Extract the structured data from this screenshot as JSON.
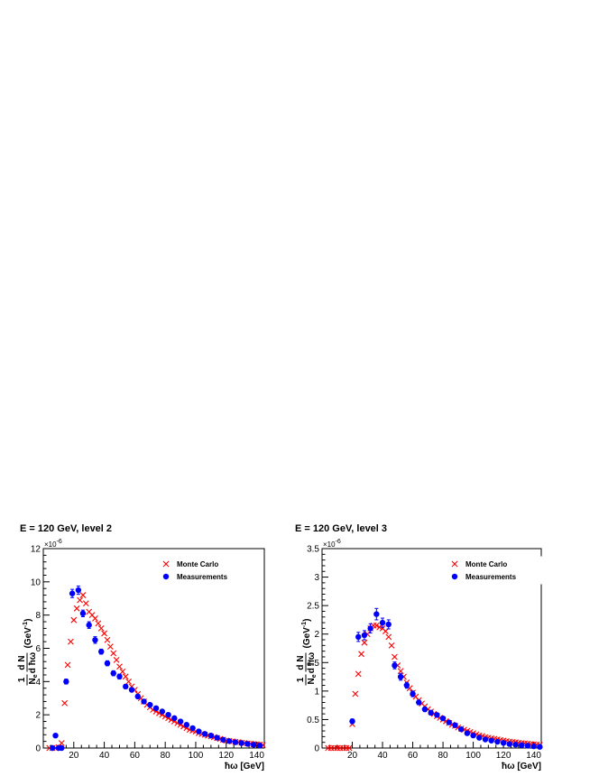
{
  "chart_data": [
    {
      "type": "scatter",
      "title": "E = 120 GeV, level 2",
      "xlabel": "ħω [GeV]",
      "ylabel": "1/N_e dN/dħω (GeV⁻¹)",
      "ylabel_parts": {
        "frac1_num": "1",
        "frac1_den": "N",
        "frac1_den_sub": "e",
        "frac2_num": "d N",
        "frac2_den": "d ħω",
        "unit": "(GeV",
        "unit_sup": "-1",
        "unit_close": ")"
      },
      "y_multiplier": "×10",
      "y_multiplier_exp": "-6",
      "xlim": [
        0,
        145
      ],
      "ylim": [
        0,
        12
      ],
      "xticks": [
        20,
        40,
        60,
        80,
        100,
        120,
        140
      ],
      "yticks": [
        0,
        2,
        4,
        6,
        8,
        10,
        12
      ],
      "ytick_labels": [
        "0",
        "2",
        "4",
        "6",
        "8",
        "10",
        "12"
      ],
      "legend_position": "top-right",
      "series": [
        {
          "name": "Monte Carlo",
          "color": "#ff0000",
          "marker": "x",
          "x": [
            4,
            6,
            8,
            10,
            12,
            14,
            16,
            18,
            20,
            22,
            24,
            26,
            28,
            30,
            32,
            34,
            36,
            38,
            40,
            42,
            44,
            46,
            48,
            50,
            52,
            54,
            56,
            58,
            60,
            62,
            64,
            66,
            68,
            70,
            72,
            74,
            76,
            78,
            80,
            82,
            84,
            86,
            88,
            90,
            92,
            94,
            96,
            98,
            100,
            102,
            104,
            106,
            108,
            110,
            112,
            114,
            116,
            118,
            120,
            122,
            124,
            126,
            128,
            130,
            132,
            134,
            136,
            138,
            140,
            142,
            144
          ],
          "y": [
            0,
            0,
            0,
            0.05,
            0.3,
            2.7,
            5.0,
            6.4,
            7.7,
            8.4,
            8.9,
            9.2,
            8.7,
            8.2,
            8.0,
            7.8,
            7.5,
            7.2,
            6.9,
            6.5,
            6.1,
            5.7,
            5.3,
            4.9,
            4.6,
            4.3,
            4.0,
            3.7,
            3.5,
            3.25,
            3.0,
            2.8,
            2.6,
            2.45,
            2.3,
            2.2,
            2.1,
            2.0,
            1.9,
            1.8,
            1.7,
            1.6,
            1.5,
            1.4,
            1.3,
            1.2,
            1.1,
            1.05,
            1.0,
            0.9,
            0.85,
            0.8,
            0.75,
            0.7,
            0.65,
            0.6,
            0.55,
            0.5,
            0.45,
            0.42,
            0.4,
            0.37,
            0.35,
            0.32,
            0.3,
            0.28,
            0.26,
            0.24,
            0.22,
            0.2,
            0.18
          ]
        },
        {
          "name": "Measurements",
          "color": "#0000ff",
          "marker": "circle",
          "x": [
            6,
            8,
            10,
            12,
            15,
            19,
            23,
            26,
            30,
            34,
            38,
            42,
            46,
            50,
            54,
            58,
            62,
            66,
            70,
            74,
            78,
            82,
            86,
            90,
            94,
            98,
            102,
            106,
            110,
            114,
            118,
            122,
            126,
            130,
            134,
            138,
            142
          ],
          "y": [
            0,
            0.75,
            0,
            0,
            4.0,
            9.3,
            9.5,
            8.1,
            7.4,
            6.5,
            5.8,
            5.1,
            4.5,
            4.3,
            3.7,
            3.5,
            3.1,
            2.8,
            2.6,
            2.4,
            2.2,
            2.0,
            1.8,
            1.6,
            1.4,
            1.2,
            1.0,
            0.85,
            0.75,
            0.62,
            0.5,
            0.42,
            0.35,
            0.3,
            0.25,
            0.2,
            0.15
          ],
          "yerr": [
            0,
            0.1,
            0,
            0,
            0.15,
            0.25,
            0.25,
            0.2,
            0.2,
            0.2,
            0.15,
            0.15,
            0.15,
            0.15,
            0.12,
            0.12,
            0.12,
            0.1,
            0.1,
            0.1,
            0.1,
            0.08,
            0.08,
            0.08,
            0.07,
            0.07,
            0.06,
            0.06,
            0.05,
            0.05,
            0.05,
            0.04,
            0.04,
            0.04,
            0.04,
            0.03,
            0.03
          ]
        }
      ]
    },
    {
      "type": "scatter",
      "title": "E = 120 GeV, level 3",
      "xlabel": "ħω [GeV]",
      "ylabel": "1/N_e dN/dħω (GeV⁻¹)",
      "ylabel_parts": {
        "frac1_num": "1",
        "frac1_den": "N",
        "frac1_den_sub": "e",
        "frac2_num": "d N",
        "frac2_den": "d ħω",
        "unit": "(GeV",
        "unit_sup": "-1",
        "unit_close": ")"
      },
      "y_multiplier": "×10",
      "y_multiplier_exp": "-6",
      "xlim": [
        0,
        145
      ],
      "ylim": [
        0,
        3.5
      ],
      "xticks": [
        20,
        40,
        60,
        80,
        100,
        120,
        140
      ],
      "yticks": [
        0,
        0.5,
        1,
        1.5,
        2,
        2.5,
        3,
        3.5
      ],
      "ytick_labels": [
        "0",
        "0.5",
        "1",
        "1.5",
        "2",
        "2.5",
        "3",
        "3.5"
      ],
      "legend_position": "top-right",
      "series": [
        {
          "name": "Monte Carlo",
          "color": "#ff0000",
          "marker": "x",
          "x": [
            4,
            6,
            8,
            10,
            12,
            14,
            16,
            18,
            20,
            22,
            24,
            26,
            28,
            30,
            32,
            34,
            36,
            38,
            40,
            42,
            44,
            46,
            48,
            50,
            52,
            54,
            56,
            58,
            60,
            62,
            64,
            66,
            68,
            70,
            72,
            74,
            76,
            78,
            80,
            82,
            84,
            86,
            88,
            90,
            92,
            94,
            96,
            98,
            100,
            102,
            104,
            106,
            108,
            110,
            112,
            114,
            116,
            118,
            120,
            122,
            124,
            126,
            128,
            130,
            132,
            134,
            136,
            138,
            140,
            142,
            144
          ],
          "y": [
            0,
            0,
            0,
            0,
            0,
            0,
            0,
            0,
            0.42,
            0.95,
            1.3,
            1.65,
            1.85,
            2.0,
            2.1,
            2.15,
            2.15,
            2.12,
            2.1,
            2.05,
            1.95,
            1.8,
            1.6,
            1.45,
            1.35,
            1.25,
            1.15,
            1.05,
            0.97,
            0.9,
            0.84,
            0.78,
            0.73,
            0.68,
            0.64,
            0.6,
            0.56,
            0.53,
            0.5,
            0.47,
            0.44,
            0.41,
            0.39,
            0.36,
            0.34,
            0.32,
            0.3,
            0.28,
            0.26,
            0.24,
            0.22,
            0.21,
            0.19,
            0.18,
            0.17,
            0.16,
            0.15,
            0.14,
            0.13,
            0.12,
            0.11,
            0.105,
            0.1,
            0.09,
            0.085,
            0.08,
            0.075,
            0.07,
            0.065,
            0.06,
            0.055
          ]
        },
        {
          "name": "Measurements",
          "color": "#0000ff",
          "marker": "circle",
          "x": [
            20,
            24,
            28,
            32,
            36,
            40,
            44,
            48,
            52,
            56,
            60,
            64,
            68,
            72,
            76,
            80,
            84,
            88,
            92,
            96,
            100,
            104,
            108,
            112,
            116,
            120,
            124,
            128,
            132,
            136,
            140,
            144
          ],
          "y": [
            0.47,
            1.95,
            1.98,
            2.1,
            2.35,
            2.2,
            2.17,
            1.45,
            1.25,
            1.1,
            0.95,
            0.8,
            0.68,
            0.62,
            0.58,
            0.52,
            0.45,
            0.4,
            0.33,
            0.26,
            0.22,
            0.18,
            0.15,
            0.13,
            0.11,
            0.09,
            0.07,
            0.06,
            0.05,
            0.04,
            0.03,
            0.02
          ],
          "yerr": [
            0.04,
            0.08,
            0.08,
            0.08,
            0.1,
            0.08,
            0.08,
            0.06,
            0.06,
            0.05,
            0.05,
            0.04,
            0.04,
            0.04,
            0.03,
            0.03,
            0.03,
            0.03,
            0.03,
            0.02,
            0.02,
            0.02,
            0.02,
            0.02,
            0.02,
            0.01,
            0.01,
            0.01,
            0.01,
            0.01,
            0.01,
            0.01
          ]
        }
      ]
    }
  ]
}
